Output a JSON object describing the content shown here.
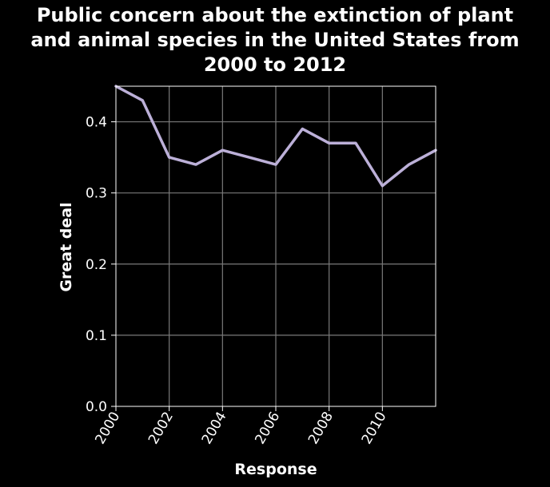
{
  "chart_data": {
    "type": "line",
    "title_lines": [
      "Public concern about the extinction of plant",
      "and animal species in the United States from",
      "2000 to 2012"
    ],
    "xlabel": "Response",
    "ylabel": "Great deal",
    "xlim": [
      2000,
      2012
    ],
    "ylim": [
      0.0,
      0.45
    ],
    "xticks": [
      "2000",
      "2002",
      "2004",
      "2006",
      "2008",
      "2010"
    ],
    "yticks": [
      "0.0",
      "0.1",
      "0.2",
      "0.3",
      "0.4"
    ],
    "grid": true,
    "series": [
      {
        "color": "#bcb0d8",
        "x": [
          2000,
          2001,
          2002,
          2003,
          2004,
          2005,
          2006,
          2007,
          2008,
          2009,
          2010,
          2011,
          2012
        ],
        "y": [
          0.45,
          0.43,
          0.35,
          0.34,
          0.36,
          0.35,
          0.34,
          0.39,
          0.37,
          0.37,
          0.31,
          0.34,
          0.36
        ]
      }
    ]
  }
}
